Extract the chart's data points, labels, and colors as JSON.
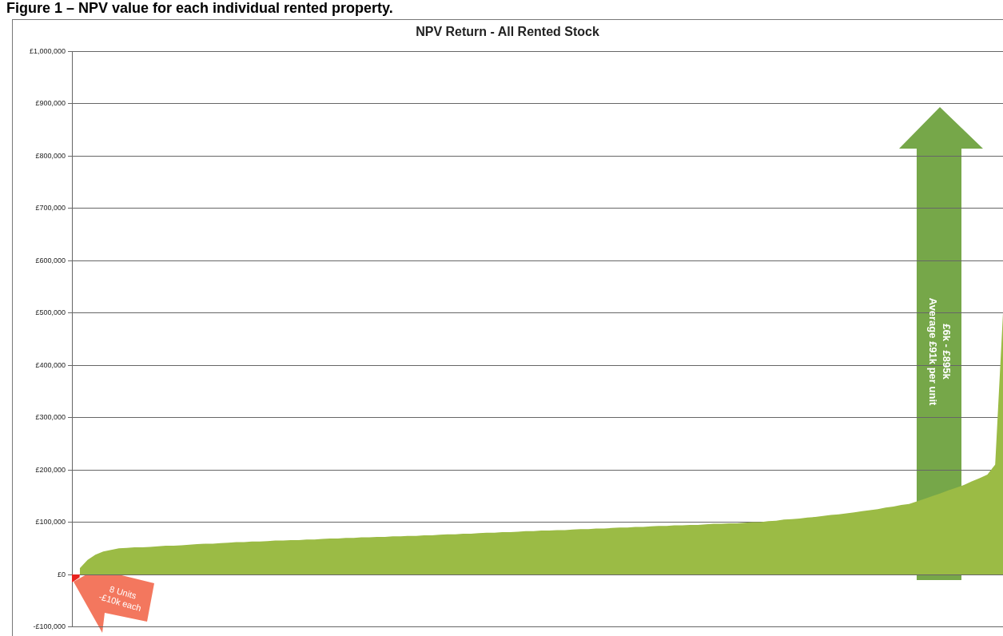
{
  "chart_data": {
    "type": "area",
    "title": "NPV Return - All Rented Stock",
    "annotations": [
      "Figure 1 – NPV value for each individual rented property.",
      "8 Units\n-£10k each",
      "£6k - £895k\nAverage £91k per unit"
    ],
    "categories": [
      null,
      null,
      null,
      null,
      null,
      null,
      null,
      null,
      null,
      null,
      null,
      null,
      null,
      null,
      null,
      null,
      null,
      null,
      null,
      null,
      null,
      null,
      null,
      null,
      null,
      null,
      null,
      null,
      null,
      null,
      null,
      null,
      null,
      null,
      null,
      null,
      null,
      null,
      null,
      null,
      null,
      null,
      null,
      null,
      null,
      null,
      null,
      null,
      null,
      null,
      null,
      null,
      null,
      null,
      null,
      null,
      null,
      null,
      null,
      null,
      null,
      null,
      null,
      null,
      null,
      null,
      null,
      null,
      null,
      null,
      null,
      null,
      null,
      null,
      null,
      null,
      null,
      null,
      null,
      null,
      null,
      null,
      null,
      null,
      null,
      null,
      null,
      null,
      null,
      null,
      null,
      null,
      null,
      null,
      null,
      null,
      null,
      null,
      null,
      null,
      null,
      null,
      null,
      null,
      null,
      null,
      null,
      null,
      null,
      null,
      null,
      null,
      null,
      null,
      null,
      null,
      null,
      null,
      null,
      null
    ],
    "series": [
      {
        "color": "#e8231f",
        "values": [
          -15000,
          -5000,
          null,
          null,
          null,
          null,
          null,
          null,
          null,
          null,
          null,
          null,
          null,
          null,
          null,
          null,
          null,
          null,
          null,
          null,
          null,
          null,
          null,
          null,
          null,
          null,
          null,
          null,
          null,
          null,
          null,
          null,
          null,
          null,
          null,
          null,
          null,
          null,
          null,
          null,
          null,
          null,
          null,
          null,
          null,
          null,
          null,
          null,
          null,
          null,
          null,
          null,
          null,
          null,
          null,
          null,
          null,
          null,
          null,
          null,
          null,
          null,
          null,
          null,
          null,
          null,
          null,
          null,
          null,
          null,
          null,
          null,
          null,
          null,
          null,
          null,
          null,
          null,
          null,
          null,
          null,
          null,
          null,
          null,
          null,
          null,
          null,
          null,
          null,
          null,
          null,
          null,
          null,
          null,
          null,
          null,
          null,
          null,
          null,
          null,
          null,
          null,
          null,
          null,
          null,
          null,
          null,
          null,
          null,
          null,
          null,
          null,
          null,
          null,
          null,
          null,
          null,
          null,
          null,
          null
        ]
      },
      {
        "color": "#9bbb45",
        "values": [
          null,
          12000,
          28000,
          38000,
          44000,
          47000,
          50000,
          51000,
          52000,
          52000,
          53000,
          54000,
          55000,
          55000,
          56000,
          57000,
          58000,
          59000,
          59000,
          60000,
          61000,
          62000,
          62000,
          63000,
          63000,
          64000,
          65000,
          65000,
          66000,
          66000,
          67000,
          67000,
          68000,
          69000,
          69000,
          70000,
          70000,
          71000,
          71000,
          72000,
          72000,
          73000,
          73000,
          74000,
          74000,
          75000,
          75000,
          76000,
          77000,
          77000,
          78000,
          78000,
          79000,
          80000,
          80000,
          81000,
          81000,
          82000,
          83000,
          83000,
          84000,
          84000,
          85000,
          85000,
          86000,
          87000,
          87000,
          88000,
          88000,
          89000,
          90000,
          90000,
          91000,
          91000,
          92000,
          93000,
          93000,
          94000,
          94000,
          95000,
          95000,
          96000,
          97000,
          97000,
          98000,
          98000,
          99000,
          100000,
          100000,
          102000,
          103000,
          105000,
          106000,
          107000,
          109000,
          110000,
          112000,
          114000,
          115000,
          117000,
          119000,
          121000,
          123000,
          125000,
          128000,
          130000,
          133000,
          135000,
          140000,
          145000,
          150000,
          155000,
          161000,
          166000,
          171000,
          178000,
          184000,
          191000,
          210000,
          500000
        ]
      }
    ],
    "ylim": [
      -100000,
      1000000
    ],
    "yticks": [
      {
        "value": -100000,
        "label": "-£100,000"
      },
      {
        "value": 0,
        "label": "£0"
      },
      {
        "value": 100000,
        "label": "£100,000"
      },
      {
        "value": 200000,
        "label": "£200,000"
      },
      {
        "value": 300000,
        "label": "£300,000"
      },
      {
        "value": 400000,
        "label": "£400,000"
      },
      {
        "value": 500000,
        "label": "£500,000"
      },
      {
        "value": 600000,
        "label": "£600,000"
      },
      {
        "value": 700000,
        "label": "£700,000"
      },
      {
        "value": 800000,
        "label": "£800,000"
      },
      {
        "value": 900000,
        "label": "£900,000"
      },
      {
        "value": 1000000,
        "label": "£1,000,000"
      }
    ],
    "grid": "y",
    "tick_labels": "y"
  }
}
